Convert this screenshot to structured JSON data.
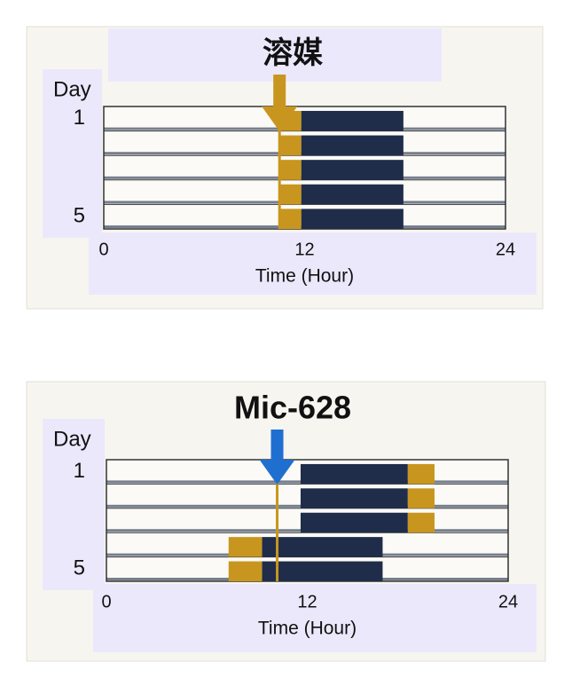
{
  "chart_data": [
    {
      "type": "actogram",
      "title": "溶媒",
      "ylabel": "Day",
      "xlabel": "Time (Hour)",
      "xlim": [
        0,
        24
      ],
      "xticks": [
        0,
        12,
        24
      ],
      "ylim": [
        1,
        5
      ],
      "yticks": [
        1,
        5
      ],
      "arrow_x": 10.5,
      "arrow_color": "#c8961e",
      "series": [
        {
          "color": "#c8961e",
          "start": [
            10.5,
            10.5,
            10.5,
            10.5,
            10.5
          ],
          "end": [
            11.8,
            11.8,
            11.8,
            11.8,
            11.8
          ]
        },
        {
          "color": "#1f2d4a",
          "start": [
            11.8,
            11.8,
            11.8,
            11.8,
            11.8
          ],
          "end": [
            17.9,
            17.9,
            17.9,
            17.9,
            17.9
          ]
        }
      ]
    },
    {
      "type": "actogram",
      "title": "Mic-628",
      "ylabel": "Day",
      "xlabel": "Time (Hour)",
      "xlim": [
        0,
        24
      ],
      "xticks": [
        0,
        12,
        24
      ],
      "ylim": [
        1,
        5
      ],
      "yticks": [
        1,
        5
      ],
      "arrow_x": 10.2,
      "arrow_color": "#1f6fd1",
      "series": [
        {
          "color": "#c8961e",
          "start": [
            18,
            18,
            18,
            7.3,
            7.3
          ],
          "end": [
            19.6,
            19.6,
            19.6,
            9.3,
            9.3
          ]
        },
        {
          "color": "#1f2d4a",
          "start": [
            11.6,
            11.6,
            11.6,
            9.3,
            9.3
          ],
          "end": [
            18,
            18,
            18,
            16.5,
            16.5
          ]
        }
      ]
    }
  ]
}
